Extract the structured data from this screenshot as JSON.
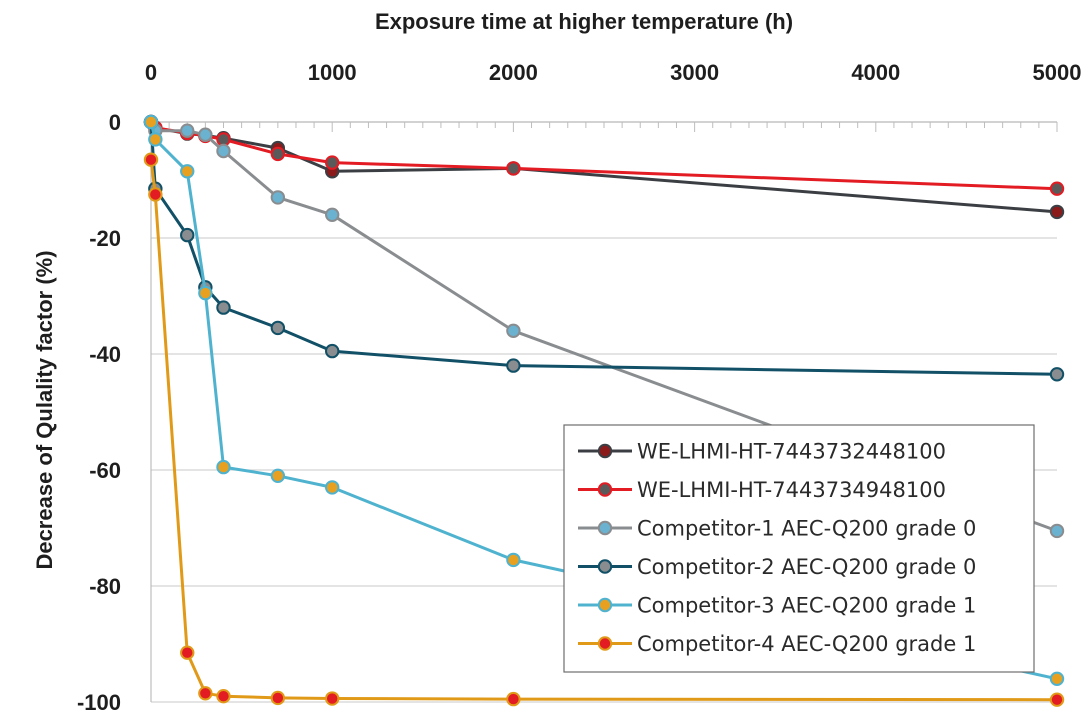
{
  "chart_data": {
    "type": "line",
    "xlabel": "Exposure time at higher temperature (h)",
    "ylabel": "Decrease of Qulality factor (%)",
    "xlim": [
      0,
      5000
    ],
    "ylim": [
      -100,
      0
    ],
    "xticks": [
      0,
      1000,
      2000,
      3000,
      4000,
      5000
    ],
    "yticks": [
      0,
      -20,
      -40,
      -60,
      -80,
      -100
    ],
    "x_axis_position": "top",
    "grid": "horizontal",
    "legend_position": "bottom-right",
    "series": [
      {
        "name": "WE-LHMI-HT-7443732448100",
        "line_color": "#3b3f44",
        "marker_color": "#8b1a1a",
        "x": [
          0,
          24,
          200,
          300,
          400,
          700,
          1000,
          2000,
          5000
        ],
        "y": [
          0,
          -1,
          -2,
          -2.3,
          -2.8,
          -4.5,
          -8.5,
          -8,
          -15.5
        ]
      },
      {
        "name": "WE-LHMI-HT-7443734948100",
        "line_color": "#e31b23",
        "marker_color": "#5a5a5a",
        "x": [
          0,
          24,
          200,
          300,
          400,
          700,
          1000,
          2000,
          5000
        ],
        "y": [
          0,
          -1,
          -1.9,
          -2.4,
          -3,
          -5.5,
          -7,
          -8,
          -11.5
        ]
      },
      {
        "name": "Competitor-1 AEC-Q200 grade 0",
        "line_color": "#8a8d90",
        "marker_color": "#6ab2cf",
        "x": [
          0,
          24,
          200,
          300,
          400,
          700,
          1000,
          2000,
          5000
        ],
        "y": [
          0,
          -1.5,
          -1.5,
          -2.2,
          -5,
          -13,
          -16,
          -36,
          -70.5
        ]
      },
      {
        "name": "Competitor-2 AEC-Q200 grade 0",
        "line_color": "#115067",
        "marker_color": "#8a8d90",
        "x": [
          0,
          24,
          200,
          300,
          400,
          700,
          1000,
          2000,
          5000
        ],
        "y": [
          0,
          -11.5,
          -19.5,
          -28.5,
          -32,
          -35.5,
          -39.5,
          -42,
          -43.5
        ]
      },
      {
        "name": "Competitor-3 AEC-Q200 grade 1",
        "line_color": "#4fb3cf",
        "marker_color": "#e8a020",
        "x": [
          0,
          24,
          200,
          300,
          400,
          700,
          1000,
          2000,
          5000
        ],
        "y": [
          0,
          -3,
          -8.5,
          -29.5,
          -59.5,
          -61,
          -63,
          -75.5,
          -96
        ]
      },
      {
        "name": "Competitor-4 AEC-Q200 grade 1",
        "line_color": "#e19a18",
        "marker_color": "#e31b23",
        "x": [
          0,
          24,
          200,
          300,
          400,
          700,
          1000,
          2000,
          5000
        ],
        "y": [
          -6.5,
          -12.5,
          -91.5,
          -98.5,
          -99,
          -99.3,
          -99.4,
          -99.5,
          -99.6
        ]
      }
    ]
  }
}
